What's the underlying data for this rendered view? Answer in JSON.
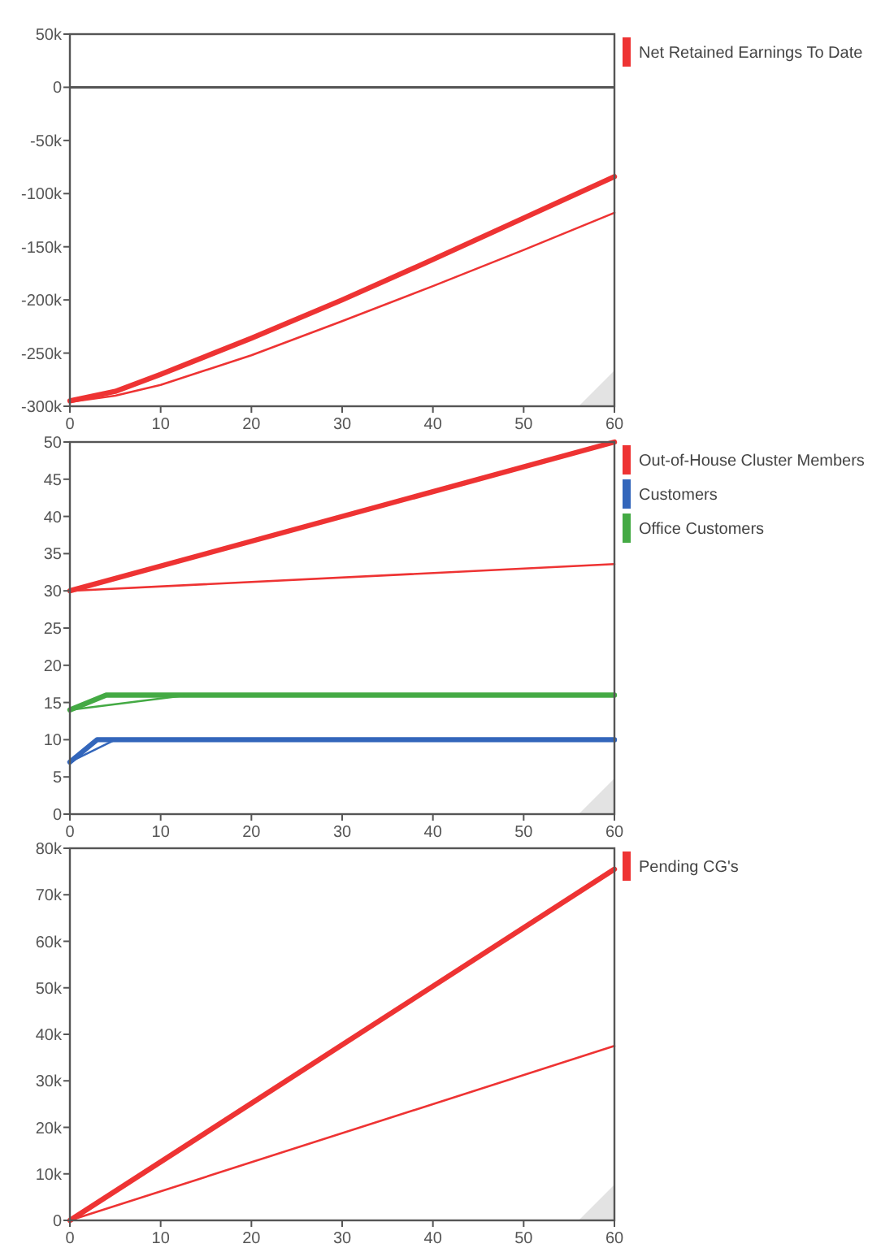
{
  "chart_data": [
    {
      "type": "line",
      "xlim": [
        0,
        60
      ],
      "xticks": [
        0,
        10,
        20,
        30,
        40,
        50,
        60
      ],
      "ylim": [
        -300000,
        50000
      ],
      "yticks": [
        {
          "value": -300000,
          "label": "-300k"
        },
        {
          "value": -250000,
          "label": "-250k"
        },
        {
          "value": -200000,
          "label": "-200k"
        },
        {
          "value": -150000,
          "label": "-150k"
        },
        {
          "value": -100000,
          "label": "-100k"
        },
        {
          "value": -50000,
          "label": "-50k"
        },
        0,
        {
          "value": 50000,
          "label": "50k"
        }
      ],
      "grid": false,
      "legend": "right",
      "marker": "none",
      "ref_lines": [
        {
          "axis": "y",
          "value": 0,
          "color": "#555555"
        }
      ],
      "series": [
        {
          "name": "Net Retained Earnings To Date",
          "color": "#ee3333",
          "x": [
            0,
            5,
            10,
            20,
            30,
            40,
            50,
            60
          ],
          "values": [
            -295000,
            -286000,
            -270000,
            -236000,
            -200000,
            -162000,
            -123000,
            -84000
          ]
        },
        {
          "color": "#ee3333",
          "x": [
            0,
            5,
            10,
            20,
            30,
            40,
            50,
            60
          ],
          "values": [
            -296000,
            -290000,
            -280000,
            -252000,
            -220000,
            -187000,
            -153000,
            -118000
          ]
        }
      ]
    },
    {
      "type": "line",
      "xlim": [
        0,
        60
      ],
      "xticks": [
        0,
        10,
        20,
        30,
        40,
        50,
        60
      ],
      "ylim": [
        0,
        50
      ],
      "yticks": [
        0,
        5,
        10,
        15,
        20,
        25,
        30,
        35,
        40,
        45,
        50
      ],
      "grid": false,
      "legend": "right",
      "marker": "none",
      "series": [
        {
          "name": "Out-of-House Cluster Members",
          "color": "#ee3333",
          "x": [
            0,
            60
          ],
          "values": [
            30,
            50
          ]
        },
        {
          "name": "Customers",
          "color": "#3366bb",
          "x": [
            0,
            3,
            60
          ],
          "values": [
            7,
            10,
            10
          ]
        },
        {
          "name": "Office Customers",
          "color": "#44aa44",
          "x": [
            0,
            4,
            60
          ],
          "values": [
            14,
            16,
            16
          ]
        },
        {
          "color": "#ee3333",
          "x": [
            0,
            60
          ],
          "values": [
            30,
            33.6
          ]
        },
        {
          "color": "#3366bb",
          "x": [
            0,
            5
          ],
          "values": [
            7,
            10
          ]
        },
        {
          "color": "#44aa44",
          "x": [
            0,
            13,
            60
          ],
          "values": [
            14,
            16,
            16
          ]
        }
      ]
    },
    {
      "type": "line",
      "xlim": [
        0,
        60
      ],
      "xticks": [
        0,
        10,
        20,
        30,
        40,
        50,
        60
      ],
      "ylim": [
        0,
        80000
      ],
      "yticks": [
        0,
        {
          "value": 10000,
          "label": "10k"
        },
        {
          "value": 20000,
          "label": "20k"
        },
        {
          "value": 30000,
          "label": "30k"
        },
        {
          "value": 40000,
          "label": "40k"
        },
        {
          "value": 50000,
          "label": "50k"
        },
        {
          "value": 60000,
          "label": "60k"
        },
        {
          "value": 70000,
          "label": "70k"
        },
        {
          "value": 80000,
          "label": "80k"
        }
      ],
      "grid": false,
      "legend": "right",
      "marker": "none",
      "series": [
        {
          "name": "Pending CG's",
          "color": "#ee3333",
          "x": [
            0,
            60
          ],
          "values": [
            0,
            75500
          ]
        },
        {
          "color": "#ee3333",
          "x": [
            0,
            60
          ],
          "values": [
            0,
            37500
          ]
        }
      ]
    }
  ]
}
